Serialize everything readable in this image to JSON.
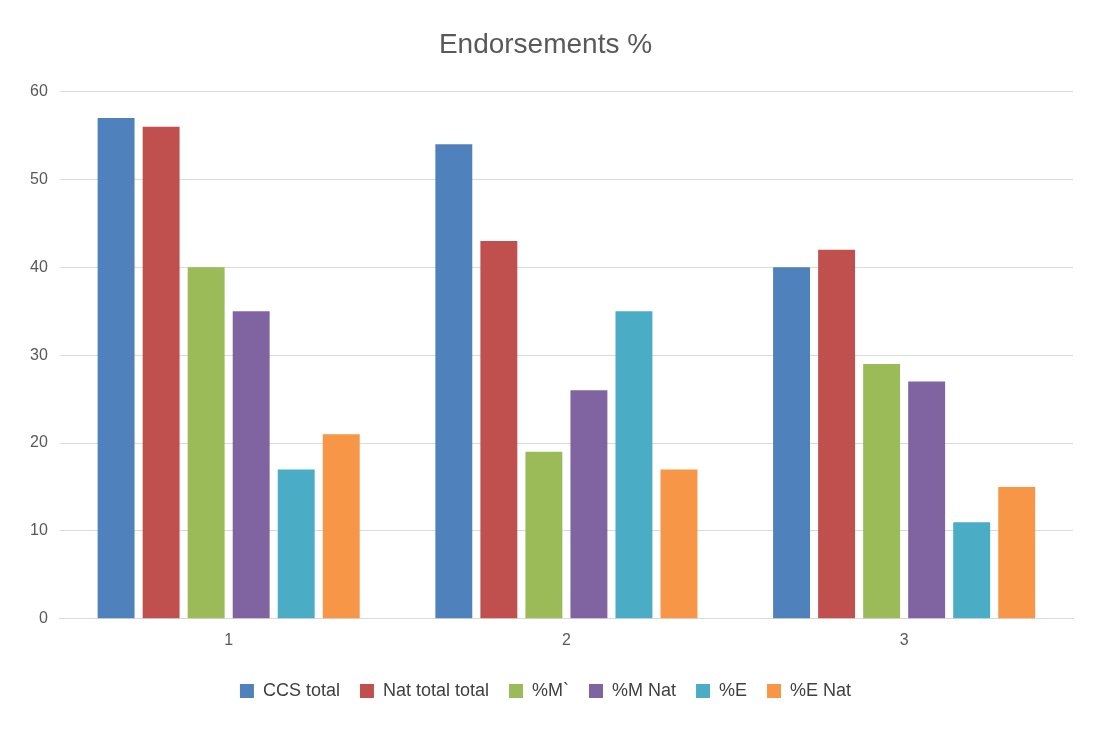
{
  "chart_data": {
    "type": "bar",
    "title": "Endorsements %",
    "categories": [
      "1",
      "2",
      "3"
    ],
    "series": [
      {
        "name": "CCS total",
        "color": "#4f81bd",
        "values": [
          57,
          54,
          40
        ]
      },
      {
        "name": "Nat total total",
        "color": "#c0504d",
        "values": [
          56,
          43,
          42
        ]
      },
      {
        "name": "%M`",
        "color": "#9bbb59",
        "values": [
          40,
          19,
          29
        ]
      },
      {
        "name": "%M Nat",
        "color": "#8064a2",
        "values": [
          35,
          26,
          27
        ]
      },
      {
        "name": "%E",
        "color": "#4bacc6",
        "values": [
          17,
          35,
          11
        ]
      },
      {
        "name": "%E Nat",
        "color": "#f79646",
        "values": [
          21,
          17,
          15
        ]
      }
    ],
    "ylim": [
      0,
      60
    ],
    "yticks": [
      0,
      10,
      20,
      30,
      40,
      50,
      60
    ],
    "grid": "y",
    "legend": "bottom"
  }
}
